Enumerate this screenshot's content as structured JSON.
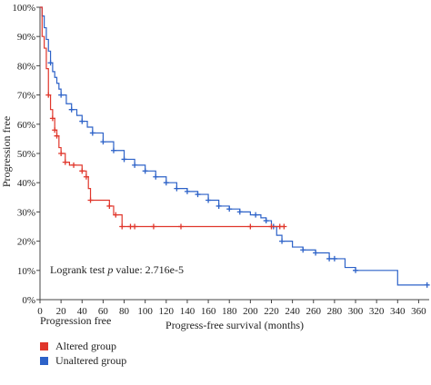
{
  "chart_data": {
    "type": "line",
    "xlabel": "Progress-free survival (months)",
    "ylabel": "Progression free",
    "xlim": [
      0,
      370
    ],
    "ylim": [
      0,
      100
    ],
    "x_ticks": [
      0,
      20,
      40,
      60,
      80,
      100,
      120,
      140,
      160,
      180,
      200,
      220,
      240,
      260,
      280,
      300,
      320,
      340,
      360
    ],
    "y_ticks": [
      0,
      10,
      20,
      30,
      40,
      50,
      60,
      70,
      80,
      90,
      100
    ],
    "y_tick_labels": [
      "0%",
      "10%",
      "20%",
      "30%",
      "40%",
      "50%",
      "60%",
      "70%",
      "80%",
      "90%",
      "100%"
    ],
    "annotation": {
      "prefix": "Logrank test ",
      "italic": "p",
      "suffix": " value: 2.716e-5"
    },
    "legend_title": "Progression free",
    "series": [
      {
        "name": "Altered group",
        "color": "#e0362b",
        "x": [
          0,
          2,
          4,
          6,
          8,
          10,
          12,
          14,
          16,
          18,
          20,
          24,
          28,
          34,
          40,
          44,
          46,
          48,
          52,
          60,
          66,
          70,
          76,
          78,
          84,
          108,
          134,
          200,
          222,
          232
        ],
        "y": [
          100,
          90,
          86,
          79,
          70,
          65,
          62,
          58,
          56,
          52,
          50,
          47,
          46,
          46,
          44,
          42,
          38,
          34,
          34,
          34,
          32,
          29,
          29,
          25,
          25,
          25,
          25,
          25,
          25,
          25
        ],
        "censor_x": [
          8,
          12,
          14,
          16,
          20,
          24,
          32,
          40,
          44,
          48,
          66,
          72,
          78,
          86,
          90,
          108,
          134,
          200,
          220,
          228,
          232
        ]
      },
      {
        "name": "Unaltered group",
        "color": "#2d62c8",
        "x": [
          0,
          2,
          4,
          6,
          8,
          10,
          12,
          14,
          16,
          18,
          20,
          25,
          30,
          35,
          40,
          45,
          50,
          60,
          70,
          80,
          90,
          100,
          110,
          120,
          130,
          140,
          150,
          160,
          170,
          180,
          190,
          200,
          210,
          215,
          220,
          225,
          230,
          240,
          250,
          262,
          275,
          290,
          300,
          320,
          340,
          370
        ],
        "y": [
          100,
          97,
          93,
          89,
          85,
          81,
          78,
          76,
          74,
          72,
          70,
          67,
          65,
          63,
          61,
          59,
          57,
          54,
          51,
          48,
          46,
          44,
          42,
          40,
          38,
          37,
          36,
          34,
          32,
          31,
          30,
          29,
          28,
          27,
          25,
          22,
          20,
          18,
          17,
          16,
          14,
          11,
          10,
          10,
          5,
          5
        ],
        "censor_x": [
          10,
          20,
          30,
          40,
          50,
          60,
          70,
          80,
          90,
          100,
          110,
          120,
          130,
          140,
          150,
          160,
          170,
          180,
          190,
          205,
          215,
          222,
          230,
          250,
          262,
          275,
          280,
          300,
          368
        ]
      }
    ]
  }
}
